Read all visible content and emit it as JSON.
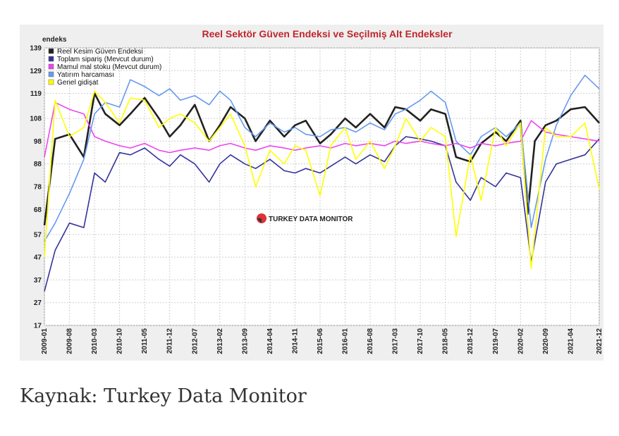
{
  "caption": "Kaynak: Turkey Data Monitor",
  "chart_data": {
    "type": "line",
    "title": "Reel Sektör Güven Endeksi ve Seçilmiş Alt Endeksler",
    "ylabel": "endeks",
    "xlabel": "",
    "ylim": [
      17,
      139
    ],
    "y_ticks": [
      17,
      27,
      37,
      47,
      57,
      68,
      78,
      88,
      98,
      108,
      119,
      129,
      139
    ],
    "x_ticks": [
      "2009-01",
      "2009-08",
      "2010-03",
      "2010-10",
      "2011-05",
      "2011-12",
      "2012-07",
      "2013-02",
      "2013-09",
      "2014-04",
      "2014-11",
      "2015-06",
      "2016-01",
      "2016-08",
      "2017-03",
      "2017-10",
      "2018-05",
      "2018-12",
      "2019-07",
      "2020-02",
      "2020-09",
      "2021-04",
      "2021-12"
    ],
    "grid": true,
    "legend_position": "top-left",
    "watermark": "TURKEY DATA MONITOR",
    "series": [
      {
        "name": "Reel Kesim Güven Endeksi",
        "color": "#222222",
        "x": [
          "2009-01",
          "2009-04",
          "2009-08",
          "2009-12",
          "2010-03",
          "2010-06",
          "2010-10",
          "2011-01",
          "2011-05",
          "2011-09",
          "2011-12",
          "2012-03",
          "2012-07",
          "2012-11",
          "2013-02",
          "2013-05",
          "2013-09",
          "2013-12",
          "2014-04",
          "2014-08",
          "2014-11",
          "2015-02",
          "2015-06",
          "2015-09",
          "2016-01",
          "2016-04",
          "2016-08",
          "2016-12",
          "2017-03",
          "2017-06",
          "2017-10",
          "2018-01",
          "2018-05",
          "2018-08",
          "2018-12",
          "2019-03",
          "2019-07",
          "2019-10",
          "2020-02",
          "2020-04",
          "2020-06",
          "2020-09",
          "2020-12",
          "2021-04",
          "2021-08",
          "2021-12"
        ],
        "y": [
          61,
          99,
          101,
          91,
          119,
          110,
          105,
          110,
          117,
          108,
          100,
          105,
          114,
          98,
          105,
          113,
          108,
          98,
          107,
          100,
          105,
          107,
          97,
          101,
          108,
          104,
          110,
          104,
          113,
          112,
          107,
          112,
          110,
          91,
          89,
          97,
          102,
          98,
          107,
          66,
          98,
          105,
          107,
          112,
          113,
          106
        ]
      },
      {
        "name": "Toplam sipariş (Mevcut durum)",
        "color": "#33339a",
        "x": [
          "2009-01",
          "2009-04",
          "2009-08",
          "2009-12",
          "2010-03",
          "2010-06",
          "2010-10",
          "2011-01",
          "2011-05",
          "2011-09",
          "2011-12",
          "2012-03",
          "2012-07",
          "2012-11",
          "2013-02",
          "2013-05",
          "2013-09",
          "2013-12",
          "2014-04",
          "2014-08",
          "2014-11",
          "2015-02",
          "2015-06",
          "2015-09",
          "2016-01",
          "2016-04",
          "2016-08",
          "2016-12",
          "2017-03",
          "2017-06",
          "2017-10",
          "2018-01",
          "2018-05",
          "2018-08",
          "2018-12",
          "2019-03",
          "2019-07",
          "2019-10",
          "2020-02",
          "2020-05",
          "2020-09",
          "2020-12",
          "2021-04",
          "2021-08",
          "2021-12"
        ],
        "y": [
          32,
          50,
          62,
          60,
          84,
          80,
          93,
          92,
          95,
          90,
          87,
          92,
          88,
          80,
          88,
          92,
          88,
          86,
          90,
          85,
          84,
          86,
          84,
          87,
          91,
          88,
          92,
          89,
          96,
          100,
          99,
          98,
          96,
          80,
          72,
          82,
          78,
          84,
          82,
          45,
          80,
          88,
          90,
          92,
          99
        ]
      },
      {
        "name": "Mamul mal stoku (Mevcut durum)",
        "color": "#ee44ee",
        "x": [
          "2009-01",
          "2009-04",
          "2009-08",
          "2009-12",
          "2010-03",
          "2010-06",
          "2010-10",
          "2011-01",
          "2011-05",
          "2011-09",
          "2011-12",
          "2012-03",
          "2012-07",
          "2012-11",
          "2013-02",
          "2013-05",
          "2013-09",
          "2013-12",
          "2014-04",
          "2014-08",
          "2014-11",
          "2015-02",
          "2015-06",
          "2015-09",
          "2016-01",
          "2016-04",
          "2016-08",
          "2016-12",
          "2017-03",
          "2017-06",
          "2017-10",
          "2018-01",
          "2018-05",
          "2018-08",
          "2018-12",
          "2019-03",
          "2019-07",
          "2019-10",
          "2020-02",
          "2020-05",
          "2020-09",
          "2020-12",
          "2021-04",
          "2021-08",
          "2021-12"
        ],
        "y": [
          91,
          115,
          112,
          110,
          100,
          98,
          96,
          95,
          97,
          94,
          93,
          94,
          95,
          94,
          96,
          97,
          95,
          94,
          96,
          95,
          94,
          95,
          96,
          95,
          97,
          96,
          97,
          96,
          98,
          97,
          98,
          97,
          96,
          97,
          95,
          97,
          96,
          97,
          98,
          107,
          102,
          101,
          100,
          99,
          98
        ]
      },
      {
        "name": "Yatırım harcaması",
        "color": "#6699ee",
        "x": [
          "2009-01",
          "2009-04",
          "2009-08",
          "2009-12",
          "2010-03",
          "2010-06",
          "2010-10",
          "2011-01",
          "2011-05",
          "2011-09",
          "2011-12",
          "2012-03",
          "2012-07",
          "2012-11",
          "2013-02",
          "2013-05",
          "2013-09",
          "2013-12",
          "2014-04",
          "2014-08",
          "2014-11",
          "2015-02",
          "2015-06",
          "2015-09",
          "2016-01",
          "2016-04",
          "2016-08",
          "2016-12",
          "2017-03",
          "2017-06",
          "2017-10",
          "2018-01",
          "2018-05",
          "2018-08",
          "2018-12",
          "2019-03",
          "2019-07",
          "2019-10",
          "2020-02",
          "2020-05",
          "2020-09",
          "2020-12",
          "2021-04",
          "2021-08",
          "2021-12"
        ],
        "y": [
          54,
          62,
          75,
          90,
          110,
          115,
          113,
          125,
          122,
          118,
          121,
          116,
          118,
          114,
          120,
          116,
          104,
          100,
          106,
          102,
          104,
          101,
          100,
          103,
          104,
          102,
          106,
          103,
          110,
          112,
          116,
          120,
          115,
          98,
          92,
          100,
          104,
          100,
          106,
          60,
          90,
          105,
          118,
          127,
          121
        ]
      },
      {
        "name": "Genel gidişat",
        "color": "#ffff00",
        "x": [
          "2009-01",
          "2009-04",
          "2009-08",
          "2009-12",
          "2010-03",
          "2010-06",
          "2010-10",
          "2011-01",
          "2011-05",
          "2011-09",
          "2011-12",
          "2012-03",
          "2012-07",
          "2012-11",
          "2013-02",
          "2013-05",
          "2013-09",
          "2013-12",
          "2014-04",
          "2014-08",
          "2014-11",
          "2015-02",
          "2015-06",
          "2015-09",
          "2016-01",
          "2016-04",
          "2016-08",
          "2016-12",
          "2017-03",
          "2017-06",
          "2017-10",
          "2018-01",
          "2018-05",
          "2018-08",
          "2018-12",
          "2019-03",
          "2019-07",
          "2019-10",
          "2020-02",
          "2020-05",
          "2020-09",
          "2020-12",
          "2021-04",
          "2021-08",
          "2021-12"
        ],
        "y": [
          47,
          116,
          100,
          104,
          120,
          115,
          106,
          117,
          116,
          104,
          108,
          110,
          106,
          98,
          104,
          110,
          96,
          78,
          94,
          88,
          96,
          94,
          74,
          96,
          104,
          90,
          98,
          86,
          96,
          108,
          98,
          104,
          100,
          56,
          92,
          72,
          104,
          96,
          106,
          42,
          104,
          100,
          100,
          106,
          77
        ]
      }
    ]
  }
}
